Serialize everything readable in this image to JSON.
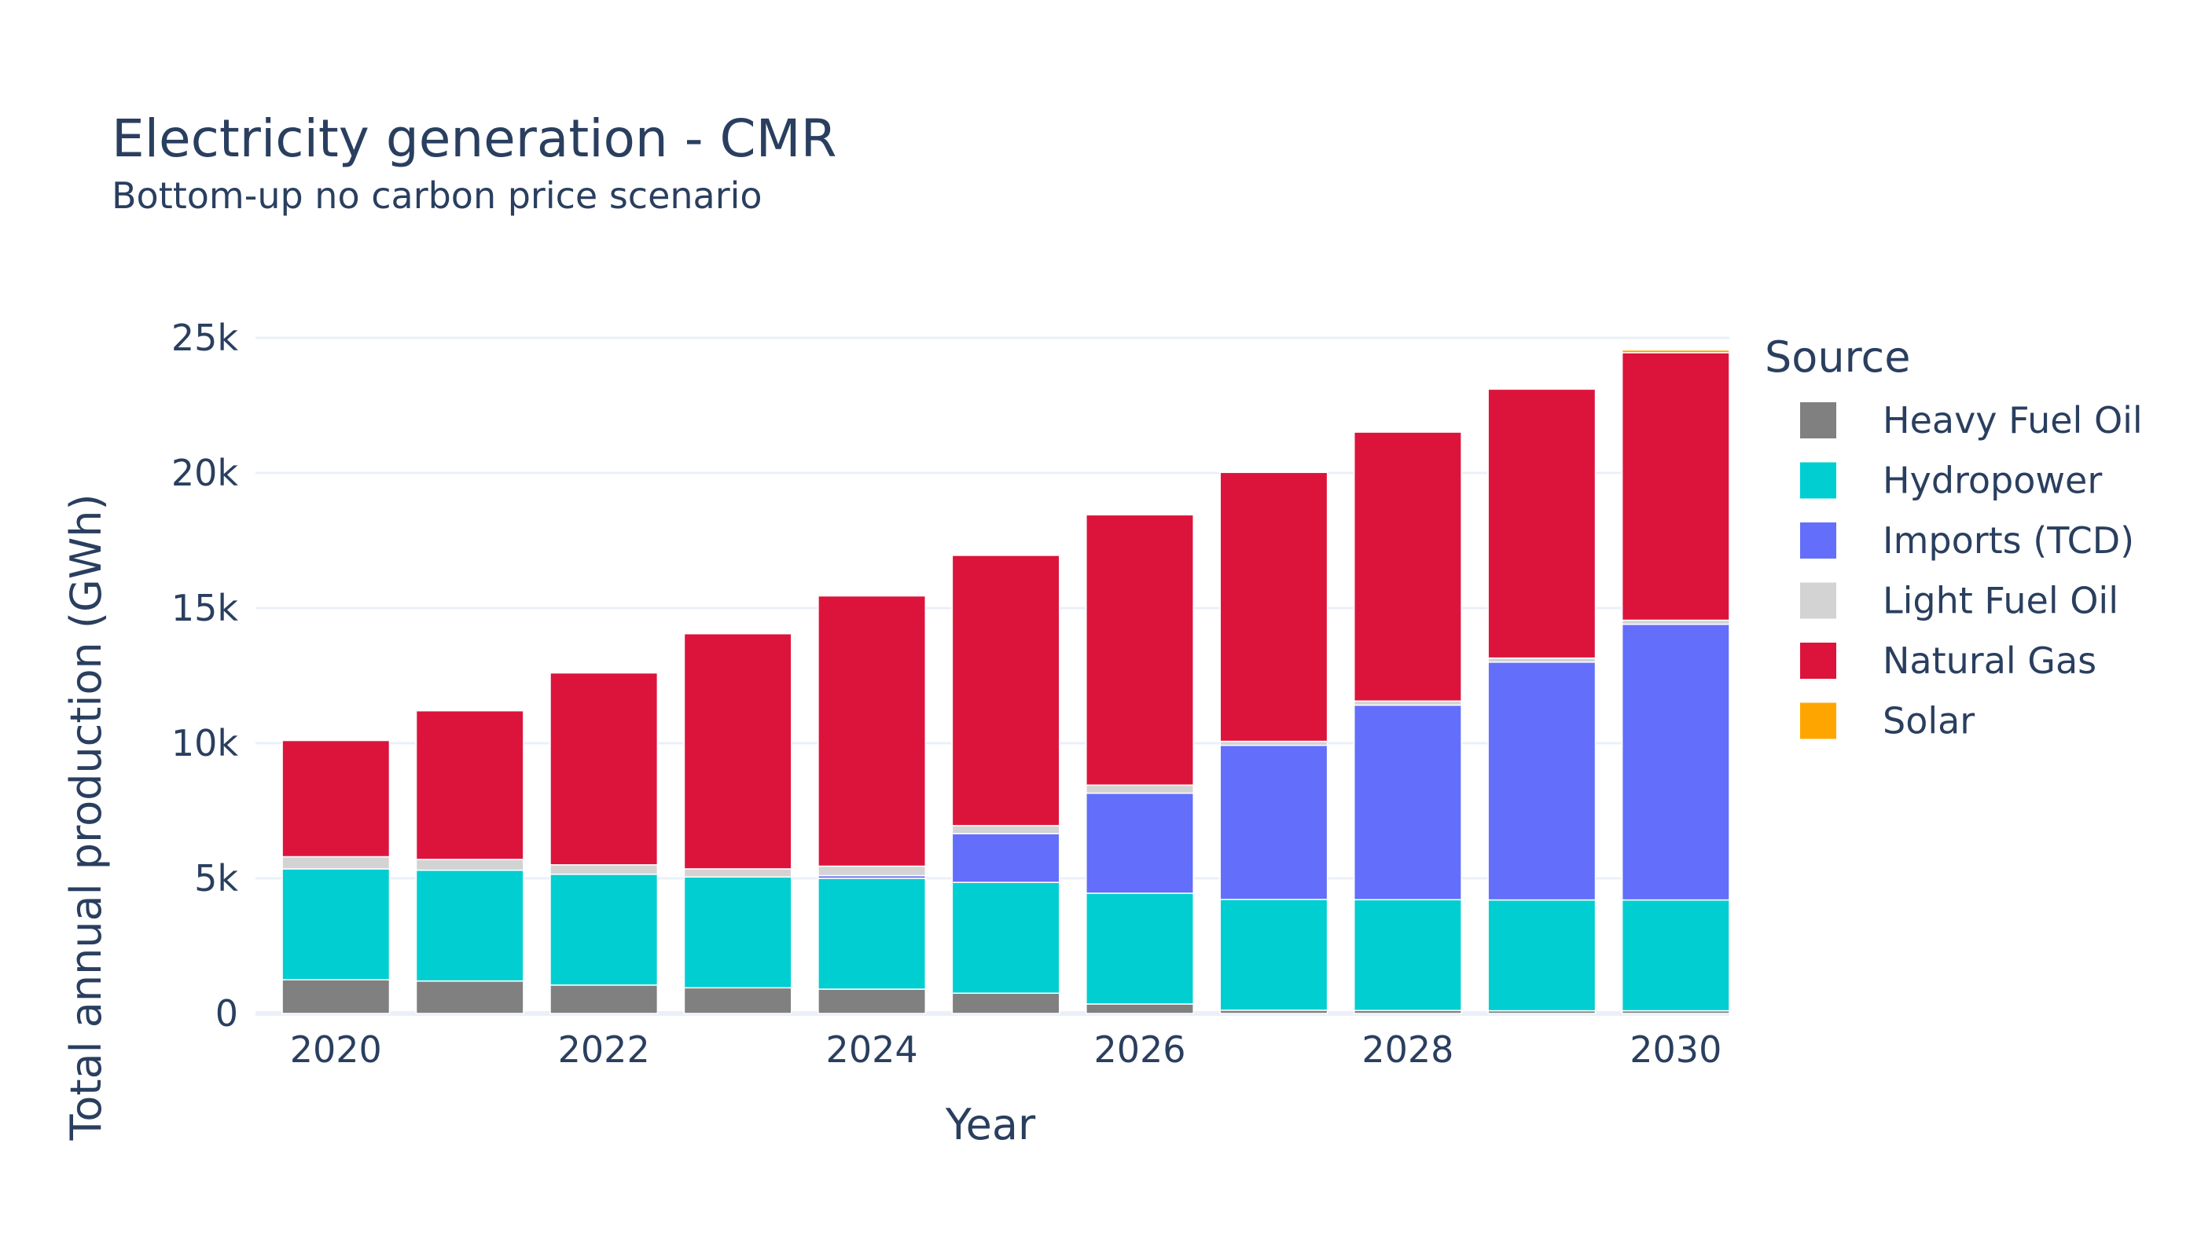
{
  "chart_data": {
    "type": "bar",
    "stacked": true,
    "title": "Electricity generation - CMR",
    "subtitle": "Bottom-up no carbon price scenario",
    "xlabel": "Year",
    "ylabel": "Total annual production (GWh)",
    "ylim": [
      0,
      25000
    ],
    "yticks": [
      0,
      5000,
      10000,
      15000,
      20000,
      25000
    ],
    "ytick_labels": [
      "0",
      "5k",
      "10k",
      "15k",
      "20k",
      "25k"
    ],
    "xticks": [
      2020,
      2022,
      2024,
      2026,
      2028,
      2030
    ],
    "x": [
      2020,
      2021,
      2022,
      2023,
      2024,
      2025,
      2026,
      2027,
      2028,
      2029,
      2030
    ],
    "grid": true,
    "legend_title": "Source",
    "legend_position": "right",
    "series": [
      {
        "name": "Heavy Fuel Oil",
        "color": "#808080",
        "values": [
          1250,
          1200,
          1050,
          950,
          900,
          750,
          350,
          120,
          110,
          100,
          100
        ]
      },
      {
        "name": "Hydropower",
        "color": "#00CED1",
        "values": [
          4100,
          4100,
          4100,
          4100,
          4100,
          4100,
          4100,
          4100,
          4100,
          4100,
          4100
        ]
      },
      {
        "name": "Imports (TCD)",
        "color": "#636EFA",
        "values": [
          0,
          0,
          0,
          0,
          100,
          1800,
          3700,
          5700,
          7200,
          8800,
          10200
        ]
      },
      {
        "name": "Light Fuel Oil",
        "color": "#D3D3D3",
        "values": [
          450,
          400,
          350,
          300,
          350,
          300,
          300,
          150,
          150,
          150,
          150
        ]
      },
      {
        "name": "Natural Gas",
        "color": "#DC143C",
        "values": [
          4300,
          5500,
          7100,
          8700,
          10000,
          10000,
          10000,
          9950,
          9950,
          9950,
          9900
        ]
      },
      {
        "name": "Solar",
        "color": "#FFA500",
        "values": [
          0,
          0,
          0,
          0,
          0,
          0,
          0,
          0,
          0,
          0,
          100
        ]
      }
    ]
  }
}
